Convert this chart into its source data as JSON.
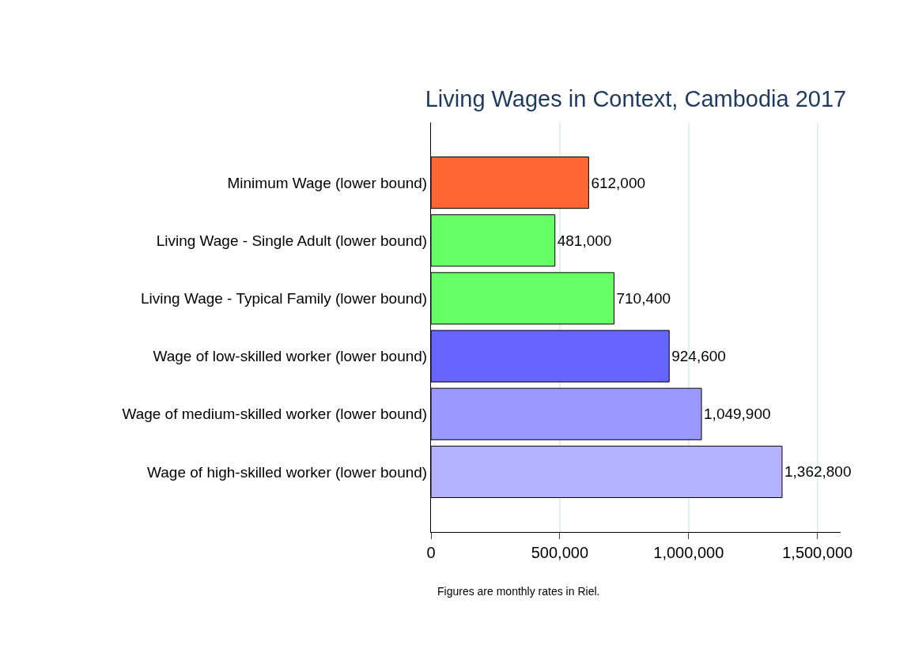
{
  "chart_data": {
    "type": "bar",
    "orientation": "horizontal",
    "title": "Living Wages in Context, Cambodia 2017",
    "categories": [
      "Minimum Wage (lower bound)",
      "Living Wage - Single Adult (lower bound)",
      "Living Wage - Typical Family (lower bound)",
      "Wage of low-skilled worker (lower bound)",
      "Wage of medium-skilled worker (lower bound)",
      "Wage of high-skilled worker (lower bound)"
    ],
    "values": [
      612000,
      481000,
      710400,
      924600,
      1049900,
      1362800
    ],
    "colors": [
      "#ff6633",
      "#66ff66",
      "#66ff66",
      "#6666ff",
      "#9999ff",
      "#b3b3ff"
    ],
    "xlim": [
      0,
      1590000
    ],
    "xticks": [
      {
        "value": 0,
        "label": "0"
      },
      {
        "value": 500000,
        "label": "500,000"
      },
      {
        "value": 1000000,
        "label": "1,000,000"
      },
      {
        "value": 1500000,
        "label": "1,500,000"
      }
    ],
    "value_labels": [
      "612,000",
      "481,000",
      "710,400",
      "924,600",
      "1,049,900",
      "1,362,800"
    ],
    "grid": "x",
    "annotations": [
      "Figures are monthly rates in Riel."
    ]
  }
}
